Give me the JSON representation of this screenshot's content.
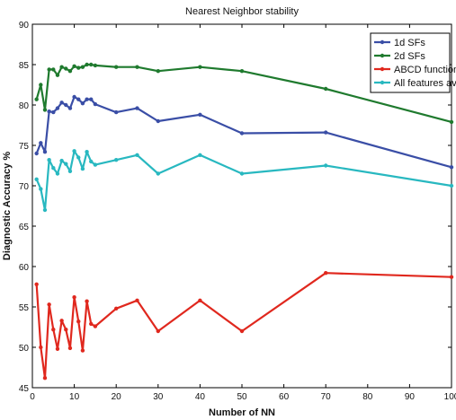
{
  "chart_data": {
    "type": "line",
    "title": "Nearest Neighbor stability",
    "xlabel": "Number of NN",
    "ylabel": "Diagnostic Accuracy %",
    "xlim": [
      0,
      100
    ],
    "ylim": [
      45,
      90
    ],
    "xticks": [
      0,
      10,
      20,
      30,
      40,
      50,
      60,
      70,
      80,
      90,
      100
    ],
    "yticks": [
      45,
      50,
      55,
      60,
      65,
      70,
      75,
      80,
      85,
      90
    ],
    "grid": false,
    "legend_position": "top-right",
    "x": [
      1,
      2,
      3,
      4,
      5,
      6,
      7,
      8,
      9,
      10,
      11,
      12,
      13,
      14,
      15,
      20,
      25,
      30,
      40,
      50,
      70,
      100
    ],
    "series": [
      {
        "name": "1d SFs",
        "color": "#3a4ea6",
        "values": [
          74.0,
          75.3,
          74.2,
          79.2,
          79.1,
          79.6,
          80.3,
          80.0,
          79.6,
          81.0,
          80.7,
          80.2,
          80.7,
          80.7,
          80.1,
          79.1,
          79.6,
          78.0,
          78.8,
          76.5,
          76.6,
          72.3
        ]
      },
      {
        "name": "2d SFs",
        "color": "#1f7a2e",
        "values": [
          80.7,
          82.5,
          79.4,
          84.4,
          84.4,
          83.7,
          84.7,
          84.5,
          84.2,
          84.8,
          84.6,
          84.7,
          85.0,
          85.0,
          84.9,
          84.7,
          84.7,
          84.2,
          84.7,
          84.2,
          82.0,
          77.9
        ]
      },
      {
        "name": "ABCD functions",
        "color": "#e0281e",
        "values": [
          57.8,
          50.0,
          46.2,
          55.3,
          52.2,
          49.8,
          53.3,
          52.2,
          49.9,
          56.2,
          53.2,
          49.6,
          55.7,
          52.9,
          52.6,
          54.8,
          55.8,
          52.0,
          55.8,
          52.0,
          59.2,
          58.7
        ]
      },
      {
        "name": "All features avg.",
        "color": "#28b8c0",
        "values": [
          70.8,
          69.6,
          67.0,
          73.2,
          72.2,
          71.5,
          73.1,
          72.7,
          71.8,
          74.3,
          73.5,
          72.1,
          74.2,
          73.0,
          72.6,
          73.2,
          73.8,
          71.5,
          73.8,
          71.5,
          72.5,
          70.0
        ]
      }
    ]
  }
}
